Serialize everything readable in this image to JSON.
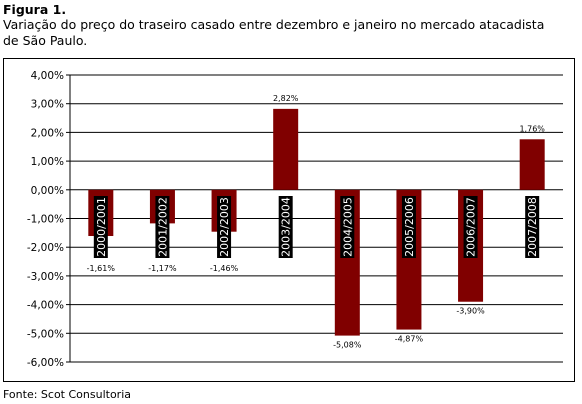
{
  "figure": {
    "label": "Figura 1.",
    "caption": "Variação do preço do traseiro casado entre dezembro e janeiro no mercado atacadista de São Paulo.",
    "source": "Fonte: Scot Consultoria"
  },
  "chart_data": {
    "type": "bar",
    "categories": [
      "2000/2001",
      "2001/2002",
      "2002/2003",
      "2003/2004",
      "2004/2005",
      "2005/2006",
      "2006/2007",
      "2007/2008"
    ],
    "values": [
      -1.61,
      -1.17,
      -1.46,
      2.82,
      -5.08,
      -4.87,
      -3.9,
      1.76
    ],
    "value_labels": [
      "-1,61%",
      "-1,17%",
      "-1,46%",
      "2,82%",
      "-5,08%",
      "-4,87%",
      "-3,90%",
      "1,76%"
    ],
    "ylim": [
      -6,
      4
    ],
    "yticks": [
      4,
      3,
      2,
      1,
      0,
      -1,
      -2,
      -3,
      -4,
      -5,
      -6
    ],
    "ytick_labels": [
      "4,00%",
      "3,00%",
      "2,00%",
      "1,00%",
      "0,00%",
      "-1,00%",
      "-2,00%",
      "-3,00%",
      "-4,00%",
      "-5,00%",
      "-6,00%"
    ],
    "bar_color": "#800000",
    "category_label_bg": "#000000",
    "grid": true
  }
}
